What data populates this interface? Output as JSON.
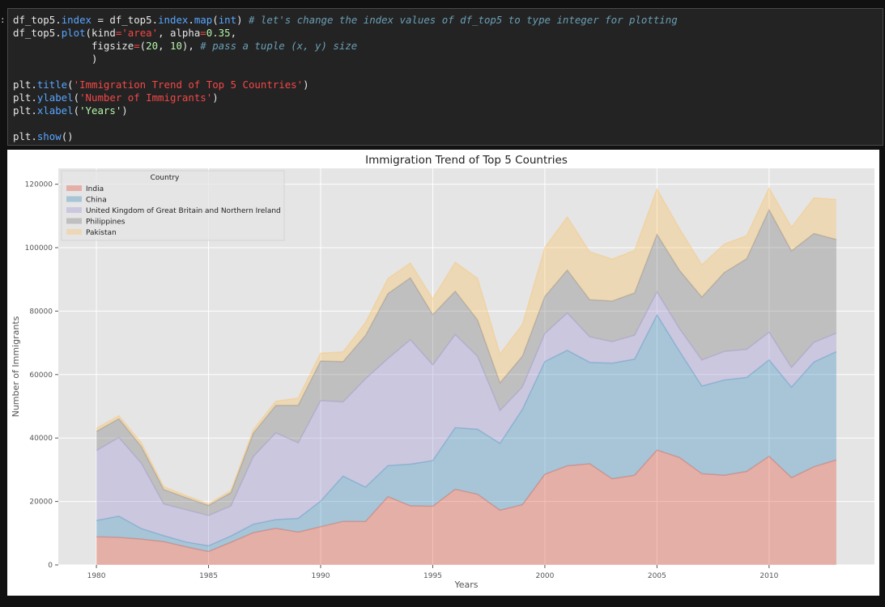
{
  "code": {
    "prompt": ":",
    "lines": [
      [
        [
          "df_top5.",
          ""
        ],
        [
          "index",
          "kw"
        ],
        [
          " = df_top5.",
          ""
        ],
        [
          "index",
          "kw"
        ],
        [
          ".",
          ""
        ],
        [
          "map",
          "kw"
        ],
        [
          "(",
          ""
        ],
        [
          "int",
          "kw"
        ],
        [
          ") ",
          ""
        ],
        [
          "# let's change the index values of df_top5 to type integer for plotting",
          "com"
        ]
      ],
      [
        [
          "df_top5.",
          ""
        ],
        [
          "plot",
          "kw"
        ],
        [
          "(kind",
          ""
        ],
        [
          "=",
          "op"
        ],
        [
          "'area'",
          "str"
        ],
        [
          ", alpha",
          ""
        ],
        [
          "=",
          "op"
        ],
        [
          "0.35",
          "num"
        ],
        [
          ",",
          ""
        ]
      ],
      [
        [
          "             figsize",
          ""
        ],
        [
          "=",
          "op"
        ],
        [
          "(",
          ""
        ],
        [
          "20",
          "num"
        ],
        [
          ", ",
          ""
        ],
        [
          "10",
          "num"
        ],
        [
          "), ",
          ""
        ],
        [
          "# pass a tuple (x, y) size",
          "com"
        ]
      ],
      [
        [
          "             )",
          ""
        ]
      ],
      [
        [
          "",
          ""
        ]
      ],
      [
        [
          "plt.",
          ""
        ],
        [
          "title",
          "kw"
        ],
        [
          "(",
          ""
        ],
        [
          "'Immigration Trend of Top 5 Countries'",
          "str"
        ],
        [
          ")",
          ""
        ]
      ],
      [
        [
          "plt.",
          ""
        ],
        [
          "ylabel",
          "kw"
        ],
        [
          "(",
          ""
        ],
        [
          "'Number of Immigrants'",
          "str"
        ],
        [
          ")",
          ""
        ]
      ],
      [
        [
          "plt.",
          ""
        ],
        [
          "xlabel",
          "kw"
        ],
        [
          "(",
          ""
        ],
        [
          "'Years'",
          "num"
        ],
        [
          ")",
          ""
        ]
      ],
      [
        [
          "",
          ""
        ]
      ],
      [
        [
          "plt.",
          ""
        ],
        [
          "show",
          "kw"
        ],
        [
          "()",
          ""
        ]
      ]
    ]
  },
  "chart_data": {
    "type": "area",
    "stacked": true,
    "alpha": 0.35,
    "title": "Immigration Trend of Top 5 Countries",
    "xlabel": "Years",
    "ylabel": "Number of Immigrants",
    "xlim": [
      1978.3,
      2014.7
    ],
    "ylim": [
      0,
      125000
    ],
    "xticks": [
      1980,
      1985,
      1990,
      1995,
      2000,
      2005,
      2010
    ],
    "yticks": [
      0,
      20000,
      40000,
      60000,
      80000,
      100000,
      120000
    ],
    "grid": true,
    "legend_title": "Country",
    "legend_position": "upper-left",
    "x": [
      1980,
      1981,
      1982,
      1983,
      1984,
      1985,
      1986,
      1987,
      1988,
      1989,
      1990,
      1991,
      1992,
      1993,
      1994,
      1995,
      1996,
      1997,
      1998,
      1999,
      2000,
      2001,
      2002,
      2003,
      2004,
      2005,
      2006,
      2007,
      2008,
      2009,
      2010,
      2011,
      2012,
      2013
    ],
    "series": [
      {
        "name": "India",
        "color": "#E24A33",
        "values": [
          8880,
          8670,
          8147,
          7338,
          5704,
          4211,
          7150,
          10189,
          11522,
          10343,
          12041,
          13734,
          13673,
          21496,
          18620,
          18489,
          23859,
          22268,
          17241,
          18974,
          28572,
          31223,
          31889,
          27155,
          28235,
          36210,
          33848,
          28742,
          28261,
          29456,
          34235,
          27509,
          30933,
          33087
        ]
      },
      {
        "name": "China",
        "color": "#348ABD",
        "values": [
          5123,
          6682,
          3308,
          1863,
          1527,
          1816,
          1960,
          2643,
          2758,
          4323,
          8076,
          14255,
          10846,
          9817,
          13128,
          14398,
          19415,
          20475,
          21049,
          30069,
          35529,
          36434,
          31961,
          36439,
          36619,
          42584,
          33518,
          27642,
          30037,
          29622,
          30391,
          28502,
          33024,
          34129
        ]
      },
      {
        "name": "United Kingdom of Great Britain and Northern Ireland",
        "color": "#988ED5",
        "values": [
          22045,
          24796,
          20620,
          10015,
          10170,
          9564,
          9470,
          21337,
          27359,
          23795,
          31668,
          23380,
          34123,
          33720,
          39231,
          30145,
          29322,
          22965,
          10367,
          7045,
          8840,
          11728,
          8046,
          6797,
          7533,
          7258,
          7140,
          8216,
          8979,
          8876,
          8724,
          6204,
          6195,
          5827
        ]
      },
      {
        "name": "Philippines",
        "color": "#777777",
        "values": [
          6051,
          5921,
          5249,
          4562,
          3801,
          3150,
          4166,
          7360,
          8639,
          11865,
          12509,
          12718,
          13670,
          20479,
          19532,
          15864,
          13692,
          11549,
          8735,
          9734,
          11707,
          13573,
          11701,
          12795,
          13343,
          18139,
          18400,
          19837,
          24887,
          28573,
          38617,
          36765,
          34315,
          29544
        ]
      },
      {
        "name": "Pakistan",
        "color": "#FBC15E",
        "values": [
          978,
          972,
          1201,
          900,
          668,
          514,
          691,
          1072,
          1334,
          2261,
          2470,
          3079,
          4071,
          4777,
          4666,
          4994,
          9125,
          13073,
          9068,
          9979,
          15400,
          16708,
          15110,
          13205,
          13399,
          14314,
          13127,
          10124,
          8994,
          7217,
          6811,
          7468,
          11227,
          12603
        ]
      }
    ]
  }
}
